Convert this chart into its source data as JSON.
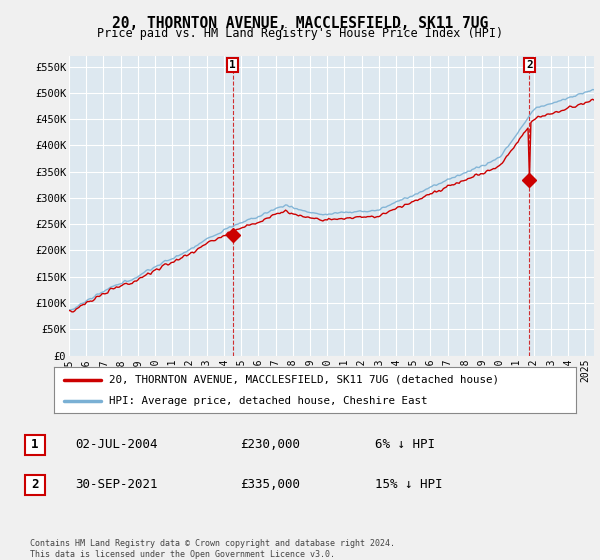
{
  "title": "20, THORNTON AVENUE, MACCLESFIELD, SK11 7UG",
  "subtitle": "Price paid vs. HM Land Registry's House Price Index (HPI)",
  "ylabel_ticks": [
    "£0",
    "£50K",
    "£100K",
    "£150K",
    "£200K",
    "£250K",
    "£300K",
    "£350K",
    "£400K",
    "£450K",
    "£500K",
    "£550K"
  ],
  "ytick_values": [
    0,
    50000,
    100000,
    150000,
    200000,
    250000,
    300000,
    350000,
    400000,
    450000,
    500000,
    550000
  ],
  "ylim": [
    0,
    570000
  ],
  "x_start_year": 1995,
  "x_end_year": 2025,
  "xtick_years": [
    1995,
    1996,
    1997,
    1998,
    1999,
    2000,
    2001,
    2002,
    2003,
    2004,
    2005,
    2006,
    2007,
    2008,
    2009,
    2010,
    2011,
    2012,
    2013,
    2014,
    2015,
    2016,
    2017,
    2018,
    2019,
    2020,
    2021,
    2022,
    2023,
    2024,
    2025
  ],
  "sale1_x": 2004.5,
  "sale1_y": 230000,
  "sale1_label": "1",
  "sale2_x": 2021.75,
  "sale2_y": 335000,
  "sale2_label": "2",
  "hpi_color": "#7ab0d4",
  "price_color": "#cc0000",
  "background_color": "#f0f0f0",
  "plot_bg_color": "#dde8f0",
  "grid_color": "#ffffff",
  "legend_line1": "20, THORNTON AVENUE, MACCLESFIELD, SK11 7UG (detached house)",
  "legend_line2": "HPI: Average price, detached house, Cheshire East",
  "annot1_date": "02-JUL-2004",
  "annot1_price": "£230,000",
  "annot1_hpi": "6% ↓ HPI",
  "annot2_date": "30-SEP-2021",
  "annot2_price": "£335,000",
  "annot2_hpi": "15% ↓ HPI",
  "footer": "Contains HM Land Registry data © Crown copyright and database right 2024.\nThis data is licensed under the Open Government Licence v3.0."
}
